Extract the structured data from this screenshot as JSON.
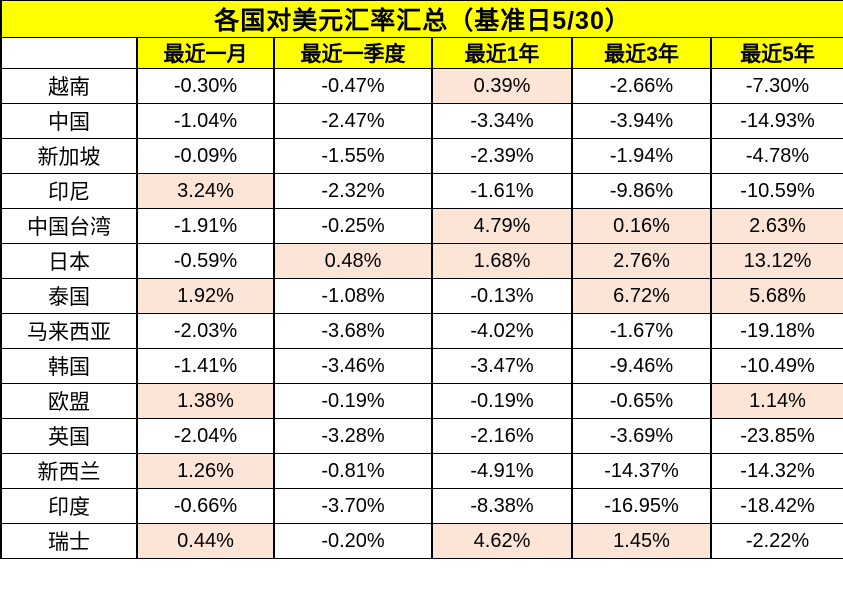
{
  "title": "各国对美元汇率汇总（基准日5/30）",
  "colors": {
    "header_bg": "#FFFF00",
    "positive_cell_bg": "#FCE4D6",
    "border": "#000000",
    "text": "#000000"
  },
  "chart_data": {
    "type": "table",
    "title": "各国对美元汇率汇总（基准日5/30）",
    "corner_label": "",
    "columns": [
      "最近一月",
      "最近一季度",
      "最近1年",
      "最近3年",
      "最近5年"
    ],
    "rows": [
      {
        "country": "越南",
        "values": [
          "-0.30%",
          "-0.47%",
          "0.39%",
          "-2.66%",
          "-7.30%"
        ]
      },
      {
        "country": "中国",
        "values": [
          "-1.04%",
          "-2.47%",
          "-3.34%",
          "-3.94%",
          "-14.93%"
        ]
      },
      {
        "country": "新加坡",
        "values": [
          "-0.09%",
          "-1.55%",
          "-2.39%",
          "-1.94%",
          "-4.78%"
        ]
      },
      {
        "country": "印尼",
        "values": [
          "3.24%",
          "-2.32%",
          "-1.61%",
          "-9.86%",
          "-10.59%"
        ]
      },
      {
        "country": "中国台湾",
        "values": [
          "-1.91%",
          "-0.25%",
          "4.79%",
          "0.16%",
          "2.63%"
        ]
      },
      {
        "country": "日本",
        "values": [
          "-0.59%",
          "0.48%",
          "1.68%",
          "2.76%",
          "13.12%"
        ]
      },
      {
        "country": "泰国",
        "values": [
          "1.92%",
          "-1.08%",
          "-0.13%",
          "6.72%",
          "5.68%"
        ]
      },
      {
        "country": "马来西亚",
        "values": [
          "-2.03%",
          "-3.68%",
          "-4.02%",
          "-1.67%",
          "-19.18%"
        ]
      },
      {
        "country": "韩国",
        "values": [
          "-1.41%",
          "-3.46%",
          "-3.47%",
          "-9.46%",
          "-10.49%"
        ]
      },
      {
        "country": "欧盟",
        "values": [
          "1.38%",
          "-0.19%",
          "-0.19%",
          "-0.65%",
          "1.14%"
        ]
      },
      {
        "country": "英国",
        "values": [
          "-2.04%",
          "-3.28%",
          "-2.16%",
          "-3.69%",
          "-23.85%"
        ]
      },
      {
        "country": "新西兰",
        "values": [
          "1.26%",
          "-0.81%",
          "-4.91%",
          "-14.37%",
          "-14.32%"
        ]
      },
      {
        "country": "印度",
        "values": [
          "-0.66%",
          "-3.70%",
          "-8.38%",
          "-16.95%",
          "-18.42%"
        ]
      },
      {
        "country": "瑞士",
        "values": [
          "0.44%",
          "-0.20%",
          "4.62%",
          "1.45%",
          "-2.22%"
        ]
      }
    ],
    "highlight_rule": "positive values have peach background"
  }
}
